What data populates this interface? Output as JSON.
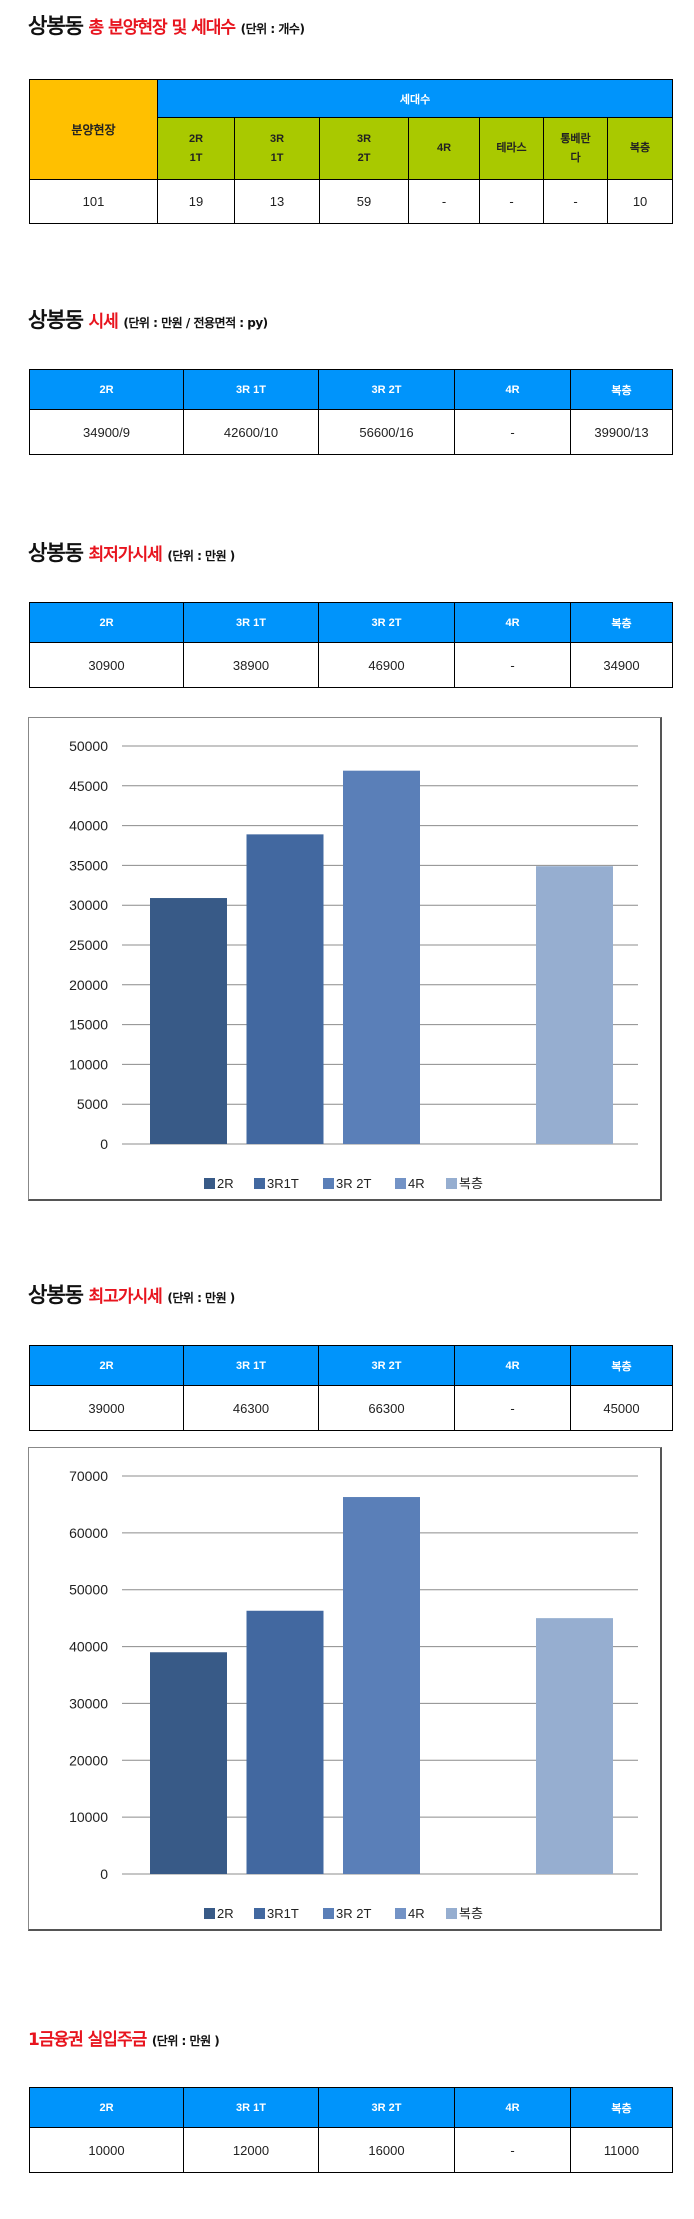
{
  "section1": {
    "title_main": "상봉동",
    "title_red": "총 분양현장 및 세대수",
    "title_unit": "(단위 : 개수)",
    "header_site": "분양현장",
    "header_units": "세대수",
    "columns": [
      "2R 1T",
      "3R 1T",
      "3R 2T",
      "4R",
      "테라스",
      "통베란다",
      "복층"
    ],
    "column_lines": [
      [
        "2R",
        "1T"
      ],
      [
        "3R",
        "1T"
      ],
      [
        "3R",
        "2T"
      ],
      [
        "4R"
      ],
      [
        "테라스"
      ],
      [
        "통베란",
        "다"
      ],
      [
        "복층"
      ]
    ],
    "values": [
      "101",
      "19",
      "13",
      "59",
      "-",
      "-",
      "-",
      "10"
    ]
  },
  "section2": {
    "title_main": "상봉동",
    "title_red": "시세",
    "title_unit": "(단위 : 만원 / 전용면적 : py)",
    "headers": [
      "2R",
      "3R 1T",
      "3R 2T",
      "4R",
      "복층"
    ],
    "values": [
      "34900/9",
      "42600/10",
      "56600/16",
      "-",
      "39900/13"
    ]
  },
  "section3": {
    "title_main": "상봉동",
    "title_red": "최저가시세",
    "title_unit": "(단위 : 만원 )",
    "headers": [
      "2R",
      "3R 1T",
      "3R 2T",
      "4R",
      "복층"
    ],
    "values": [
      "30900",
      "38900",
      "46900",
      "-",
      "34900"
    ]
  },
  "section4": {
    "title_main": "상봉동",
    "title_red": "최고가시세",
    "title_unit": "(단위 : 만원 )",
    "headers": [
      "2R",
      "3R 1T",
      "3R 2T",
      "4R",
      "복층"
    ],
    "values": [
      "39000",
      "46300",
      "66300",
      "-",
      "45000"
    ]
  },
  "section5": {
    "title_red": "1금융권 실입주금",
    "title_unit": "(단위 : 만원 )",
    "headers": [
      "2R",
      "3R 1T",
      "3R 2T",
      "4R",
      "복층"
    ],
    "values": [
      "10000",
      "12000",
      "16000",
      "-",
      "11000"
    ]
  },
  "chart_data": [
    {
      "type": "bar",
      "title": "",
      "series": [
        {
          "name": "2R",
          "values": [
            30900
          ],
          "color": "#385a87"
        },
        {
          "name": "3R1T",
          "values": [
            38900
          ],
          "color": "#4268a0"
        },
        {
          "name": "3R 2T",
          "values": [
            46900
          ],
          "color": "#5a7fb8"
        },
        {
          "name": "4R",
          "values": [
            null
          ],
          "color": "#7393c6"
        },
        {
          "name": "복층",
          "values": [
            34900
          ],
          "color": "#96aed0"
        }
      ],
      "ylim": [
        0,
        50000
      ],
      "yticks": [
        "0",
        "5000",
        "10000",
        "15000",
        "20000",
        "25000",
        "30000",
        "35000",
        "40000",
        "45000",
        "50000"
      ],
      "grid": true,
      "legend": "bottom"
    },
    {
      "type": "bar",
      "title": "",
      "series": [
        {
          "name": "2R",
          "values": [
            39000
          ],
          "color": "#385a87"
        },
        {
          "name": "3R1T",
          "values": [
            46300
          ],
          "color": "#4268a0"
        },
        {
          "name": "3R 2T",
          "values": [
            66300
          ],
          "color": "#5a7fb8"
        },
        {
          "name": "4R",
          "values": [
            null
          ],
          "color": "#7393c6"
        },
        {
          "name": "복층",
          "values": [
            45000
          ],
          "color": "#96aed0"
        }
      ],
      "ylim": [
        0,
        70000
      ],
      "yticks": [
        "0",
        "10000",
        "20000",
        "30000",
        "40000",
        "50000",
        "60000",
        "70000"
      ],
      "grid": true,
      "legend": "bottom"
    }
  ]
}
